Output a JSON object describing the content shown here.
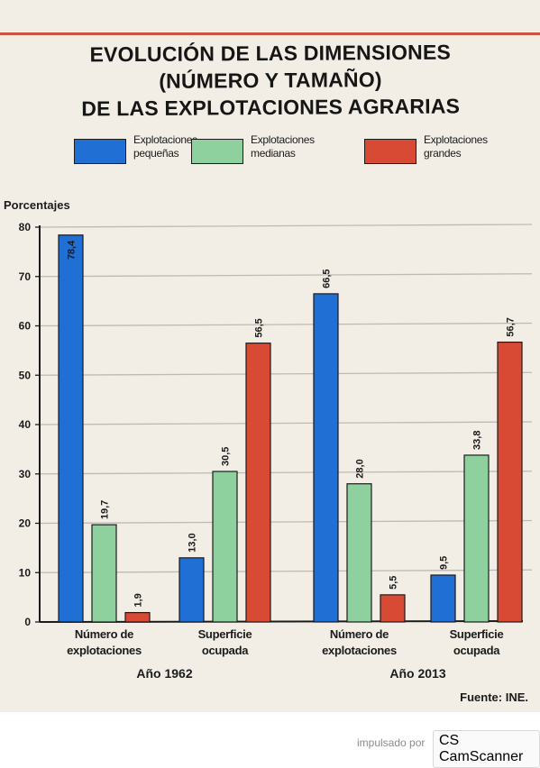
{
  "chart_data": {
    "type": "bar",
    "title": [
      "EVOLUCIÓN DE LAS DIMENSIONES",
      "(NÚMERO Y TAMAÑO)",
      "DE LAS EXPLOTACIONES AGRARIAS"
    ],
    "ylabel": "Porcentajes",
    "ylim": [
      0,
      80
    ],
    "yticks": [
      0,
      10,
      20,
      30,
      40,
      50,
      60,
      70,
      80
    ],
    "grid": true,
    "legend_position": "top",
    "groups": [
      {
        "label": "Año 1962",
        "categories": [
          [
            "Número de",
            "explotaciones"
          ],
          [
            "Superficie",
            "ocupada"
          ]
        ]
      },
      {
        "label": "Año 2013",
        "categories": [
          [
            "Número de",
            "explotaciones"
          ],
          [
            "Superficie",
            "ocupada"
          ]
        ]
      }
    ],
    "series": [
      {
        "name": "Explotaciones pequeñas",
        "legend_lines": [
          "Explotaciones",
          "pequeñas"
        ],
        "color": "#1f6fd4",
        "values": [
          78.4,
          13.0,
          66.5,
          9.5
        ],
        "labels": [
          "78,4",
          "13,0",
          "66,5",
          "9,5"
        ]
      },
      {
        "name": "Explotaciones medianas",
        "legend_lines": [
          "Explotaciones",
          "medianas"
        ],
        "color": "#8fd19e",
        "values": [
          19.7,
          30.5,
          28.0,
          33.8
        ],
        "labels": [
          "19,7",
          "30,5",
          "28,0",
          "33,8"
        ]
      },
      {
        "name": "Explotaciones grandes",
        "legend_lines": [
          "Explotaciones",
          "grandes"
        ],
        "color": "#d84a33",
        "values": [
          1.9,
          56.5,
          5.5,
          56.7
        ],
        "labels": [
          "1,9",
          "56,5",
          "5,5",
          "56,7"
        ]
      }
    ],
    "source": "Fuente: INE."
  },
  "watermark": {
    "text": "impulsado por",
    "badge": "CS",
    "brand": "CamScanner"
  }
}
